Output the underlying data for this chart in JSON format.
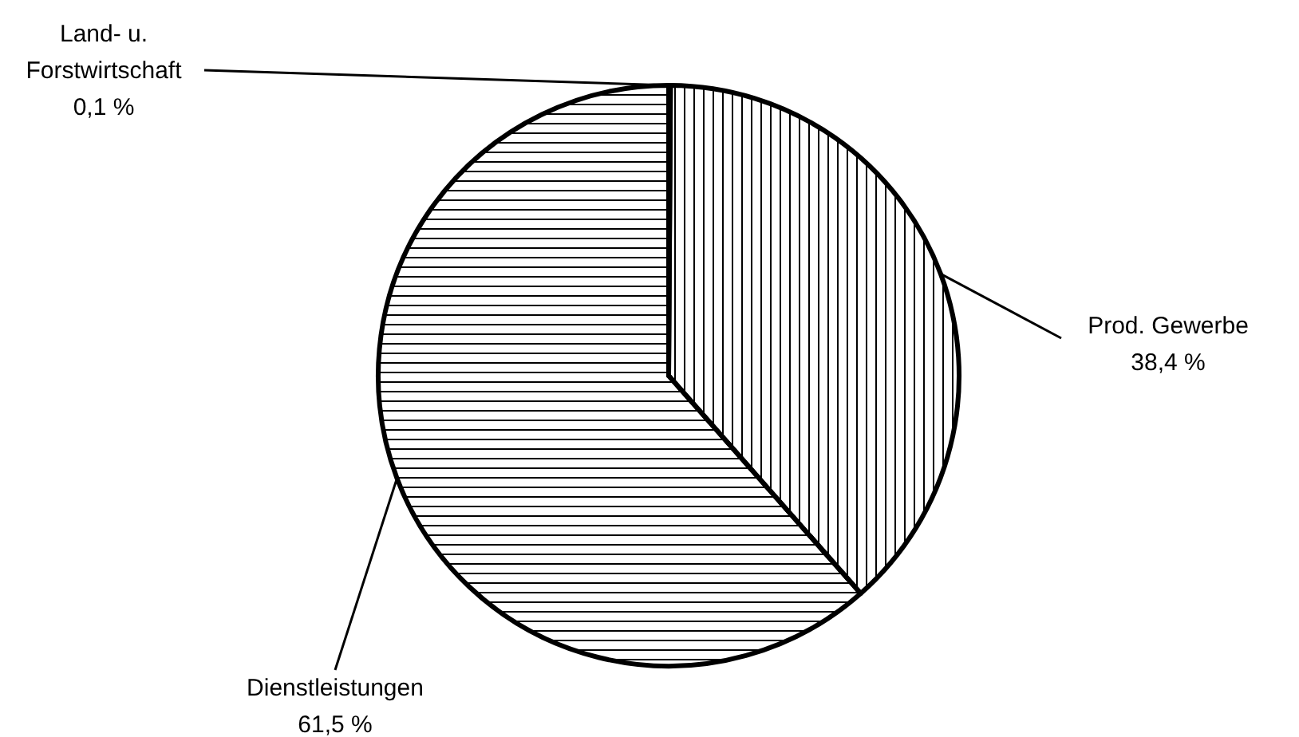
{
  "chart_data": {
    "type": "pie",
    "categories": [
      "Land- u. Forstwirtschaft",
      "Prod. Gewerbe",
      "Dienstleistungen"
    ],
    "values": [
      0.1,
      38.4,
      61.5
    ],
    "colors": [
      "#ffffff",
      "#ffffff",
      "#ffffff"
    ],
    "value_labels": [
      "0,1 %",
      "38,4 %",
      "61,5 %"
    ],
    "legend": false
  }
}
